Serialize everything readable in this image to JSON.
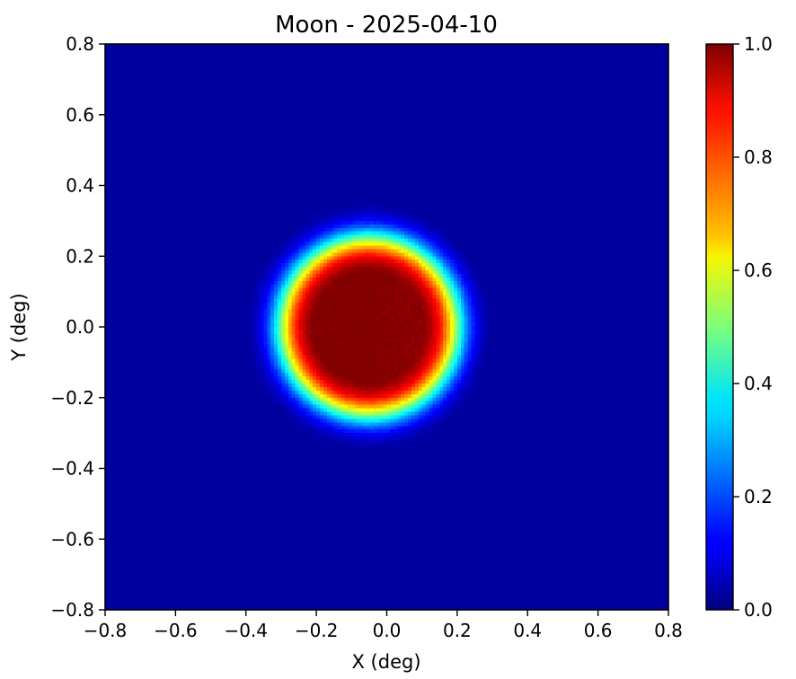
{
  "chart_data": {
    "type": "heatmap",
    "title": "Moon - 2025-04-10",
    "xlabel": "X (deg)",
    "ylabel": "Y (deg)",
    "xlim": [
      -0.8,
      0.8
    ],
    "ylim": [
      -0.8,
      0.8
    ],
    "x_ticks": [
      -0.8,
      -0.6,
      -0.4,
      -0.2,
      0.0,
      0.2,
      0.4,
      0.6,
      0.8
    ],
    "y_ticks": [
      -0.8,
      -0.6,
      -0.4,
      -0.2,
      0.0,
      0.2,
      0.4,
      0.6,
      0.8
    ],
    "x_tick_labels": [
      "−0.8",
      "−0.6",
      "−0.4",
      "−0.2",
      "0.0",
      "0.2",
      "0.4",
      "0.6",
      "0.8"
    ],
    "y_tick_labels": [
      "−0.8",
      "−0.6",
      "−0.4",
      "−0.2",
      "0.0",
      "0.2",
      "0.4",
      "0.6",
      "0.8"
    ],
    "colormap": "jet",
    "colorbar": {
      "range": [
        0.0,
        1.0
      ],
      "ticks": [
        0.0,
        0.2,
        0.4,
        0.6,
        0.8,
        1.0
      ],
      "tick_labels": [
        "0.0",
        "0.2",
        "0.4",
        "0.6",
        "0.8",
        "1.0"
      ]
    },
    "grid": false,
    "peak": {
      "x": -0.05,
      "y": 0.0,
      "value": 1.0
    },
    "peak_core_edge_deg": {
      "left": -0.21,
      "right": 0.2,
      "top": 0.21,
      "bottom": -0.2
    },
    "half_max_edge_deg": {
      "left": -0.27,
      "right": 0.25,
      "top": 0.28,
      "bottom": -0.27
    },
    "background_value": 0.0
  }
}
